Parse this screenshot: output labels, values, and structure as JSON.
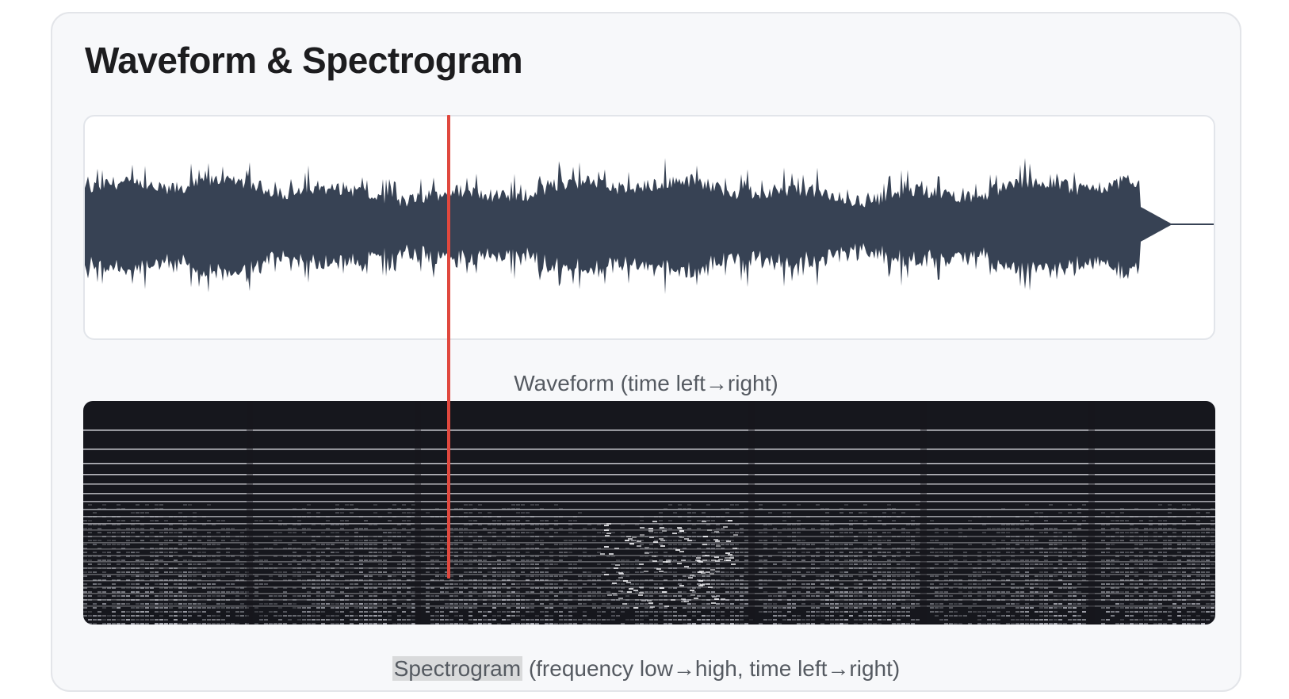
{
  "title": "Waveform & Spectrogram",
  "waveform": {
    "caption": "Waveform (time left→right)",
    "fill_color": "#374254"
  },
  "spectrogram": {
    "caption_highlight": "Spectrogram",
    "caption_rest": " (frequency low→high, time left→right)",
    "background_color": "#16171d"
  },
  "playhead": {
    "color": "#e0483e",
    "position_fraction": 0.32
  }
}
